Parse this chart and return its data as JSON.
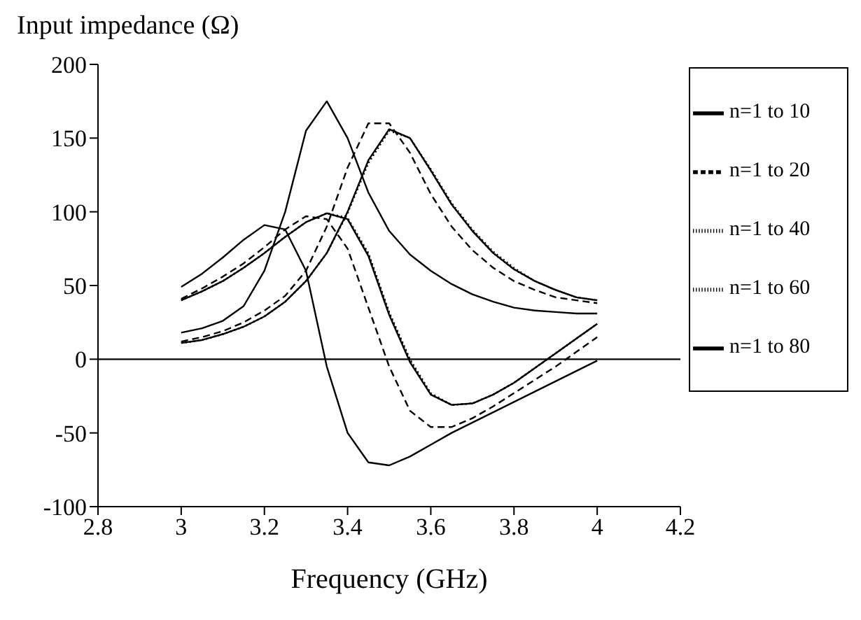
{
  "chart_data": {
    "type": "line",
    "ylabel": "Input impedance (Ω)",
    "xlabel": "Frequency (GHz)",
    "x": [
      3.0,
      3.05,
      3.1,
      3.15,
      3.2,
      3.25,
      3.3,
      3.35,
      3.4,
      3.45,
      3.5,
      3.55,
      3.6,
      3.65,
      3.7,
      3.75,
      3.8,
      3.85,
      3.9,
      3.95,
      4.0
    ],
    "xlim": [
      2.8,
      4.2
    ],
    "xticks": [
      2.8,
      3,
      3.2,
      3.4,
      3.6,
      3.8,
      4,
      4.2
    ],
    "ylim": [
      -100,
      200
    ],
    "yticks": [
      -100,
      -50,
      0,
      50,
      100,
      150,
      200
    ],
    "grid": false,
    "legend": "right",
    "ref_lines": [
      {
        "axis": "y",
        "value": 0,
        "color": "#000000"
      }
    ],
    "series": [
      {
        "name": "n=1 to 10",
        "color": "#000000",
        "line_style": "solid",
        "values": [
          18,
          21,
          26,
          36,
          60,
          100,
          155,
          175,
          150,
          113,
          87,
          71,
          60,
          51,
          44,
          39,
          35,
          33,
          32,
          31,
          31
        ]
      },
      {
        "color": "#000000",
        "line_style": "solid",
        "values": [
          49,
          58,
          69,
          81,
          91,
          88,
          60,
          -5,
          -50,
          -70,
          -72,
          -66,
          -58,
          -50,
          -43,
          -36,
          -29,
          -22,
          -15,
          -8,
          -1
        ]
      },
      {
        "name": "n=1 to 20",
        "color": "#000000",
        "line_style": "dashed",
        "values": [
          12,
          15,
          19,
          25,
          33,
          43,
          60,
          90,
          130,
          160,
          160,
          140,
          112,
          90,
          74,
          62,
          53,
          47,
          42,
          40,
          38
        ]
      },
      {
        "color": "#000000",
        "line_style": "dashed",
        "values": [
          41,
          48,
          56,
          65,
          76,
          88,
          97,
          95,
          75,
          35,
          -5,
          -35,
          -46,
          -46,
          -40,
          -32,
          -23,
          -14,
          -5,
          5,
          15
        ]
      },
      {
        "name": "n=1 to 40",
        "color": "#000000",
        "line_style": "dotted",
        "values": [
          11,
          13,
          17,
          22,
          29,
          39,
          53,
          72,
          99,
          133,
          155,
          150,
          129,
          106,
          88,
          73,
          62,
          53,
          47,
          42,
          40
        ]
      },
      {
        "color": "#000000",
        "line_style": "dotted",
        "values": [
          40,
          46,
          53,
          62,
          72,
          83,
          93,
          99,
          96,
          72,
          32,
          0,
          -23,
          -31,
          -30,
          -24,
          -16,
          -6,
          4,
          14,
          24
        ]
      },
      {
        "name": "n=1 to 60",
        "color": "#000000",
        "line_style": "dotted",
        "values": [
          11,
          13,
          17,
          22,
          29,
          39,
          53,
          72,
          100,
          134,
          156,
          150,
          128,
          105,
          87,
          72,
          61,
          53,
          47,
          42,
          40
        ]
      },
      {
        "color": "#000000",
        "line_style": "dotted",
        "values": [
          40,
          46,
          53,
          62,
          72,
          83,
          93,
          99,
          95,
          71,
          31,
          -1,
          -24,
          -31,
          -30,
          -24,
          -16,
          -6,
          4,
          14,
          24
        ]
      },
      {
        "name": "n=1 to 80",
        "color": "#000000",
        "line_style": "solid",
        "values": [
          11,
          13,
          17,
          22,
          29,
          39,
          53,
          72,
          100,
          135,
          156,
          150,
          128,
          105,
          87,
          72,
          61,
          53,
          47,
          42,
          40
        ]
      },
      {
        "color": "#000000",
        "line_style": "solid",
        "values": [
          40,
          46,
          53,
          62,
          72,
          83,
          93,
          99,
          95,
          70,
          30,
          -2,
          -24,
          -31,
          -30,
          -24,
          -16,
          -6,
          4,
          14,
          24
        ]
      }
    ]
  }
}
